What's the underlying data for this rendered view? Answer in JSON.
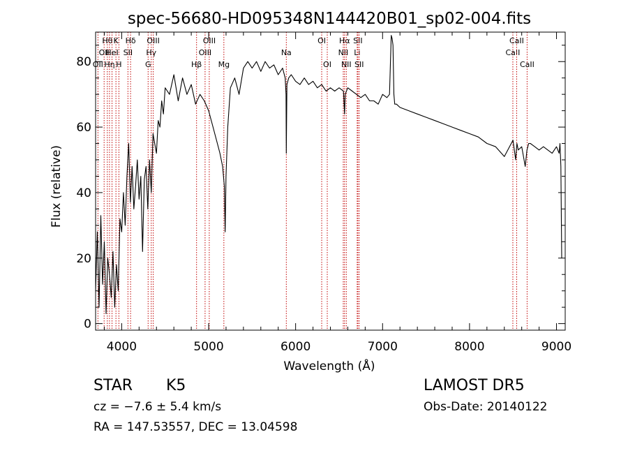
{
  "chart_data": {
    "type": "line",
    "title": "spec-56680-HD095348N144420B01_sp02-004.fits",
    "xlabel": "Wavelength (Å)",
    "ylabel": "Flux (relative)",
    "xlim": [
      3700,
      9100
    ],
    "ylim": [
      -2,
      89
    ],
    "xticks": [
      4000,
      5000,
      6000,
      7000,
      8000,
      9000
    ],
    "yticks": [
      0,
      20,
      40,
      60,
      80
    ],
    "grid": false,
    "series": [
      {
        "x": [
          3700,
          3720,
          3740,
          3760,
          3780,
          3800,
          3820,
          3840,
          3860,
          3880,
          3900,
          3920,
          3940,
          3960,
          3980,
          4000,
          4020,
          4040,
          4060,
          4080,
          4100,
          4120,
          4140,
          4160,
          4180,
          4200,
          4220,
          4240,
          4260,
          4280,
          4300,
          4320,
          4340,
          4360,
          4380,
          4400,
          4420,
          4440,
          4460,
          4480,
          4500,
          4550,
          4600,
          4650,
          4700,
          4750,
          4800,
          4850,
          4900,
          4950,
          5000,
          5050,
          5100,
          5130,
          5160,
          5180,
          5190,
          5200,
          5220,
          5250,
          5300,
          5350,
          5400,
          5450,
          5500,
          5550,
          5600,
          5650,
          5700,
          5750,
          5800,
          5850,
          5880,
          5890,
          5893,
          5900,
          5920,
          5950,
          6000,
          6050,
          6100,
          6150,
          6200,
          6250,
          6300,
          6350,
          6400,
          6450,
          6500,
          6550,
          6563,
          6570,
          6600,
          6650,
          6700,
          6750,
          6800,
          6850,
          6900,
          6950,
          7000,
          7050,
          7080,
          7100,
          7110,
          7120,
          7130,
          7140,
          7160,
          7200,
          7300,
          7400,
          7500,
          7600,
          7700,
          7800,
          7900,
          8000,
          8100,
          8200,
          8300,
          8400,
          8500,
          8530,
          8545,
          8560,
          8600,
          8640,
          8660,
          8680,
          8700,
          8750,
          8800,
          8850,
          8900,
          8950,
          9000,
          9030,
          9040,
          9050,
          9060
        ],
        "y": [
          10,
          28,
          5,
          33,
          12,
          25,
          3,
          20,
          15,
          8,
          22,
          5,
          18,
          10,
          32,
          28,
          40,
          30,
          45,
          55,
          37,
          48,
          35,
          42,
          50,
          38,
          45,
          22,
          44,
          48,
          35,
          50,
          40,
          58,
          55,
          52,
          62,
          60,
          68,
          64,
          72,
          70,
          76,
          68,
          75,
          70,
          73,
          67,
          70,
          68,
          65,
          60,
          55,
          52,
          48,
          42,
          28,
          45,
          60,
          72,
          75,
          70,
          78,
          80,
          78,
          80,
          77,
          80,
          78,
          79,
          76,
          78,
          75,
          70,
          52,
          73,
          75,
          76,
          74,
          73,
          75,
          73,
          74,
          72,
          73,
          71,
          72,
          71,
          72,
          71,
          64,
          70,
          72,
          71,
          70,
          69,
          70,
          68,
          68,
          67,
          70,
          69,
          70,
          88,
          87,
          85,
          70,
          67,
          67,
          66,
          65,
          64,
          63,
          62,
          61,
          60,
          59,
          58,
          57,
          55,
          54,
          51,
          56,
          50,
          55,
          53,
          54,
          48,
          53,
          55,
          55,
          54,
          53,
          54,
          53,
          52,
          54,
          52,
          55,
          48,
          20
        ]
      }
    ],
    "line_markers": [
      {
        "wl": 3727,
        "row": 2,
        "text": "OII"
      },
      {
        "wl": 3798,
        "row": 1,
        "text": "OII"
      },
      {
        "wl": 3835,
        "row": 0,
        "text": "Hθ"
      },
      {
        "wl": 3860,
        "row": 2,
        "text": "Hη"
      },
      {
        "wl": 3889,
        "row": 1,
        "text": "HeI"
      },
      {
        "wl": 3934,
        "row": 0,
        "text": "K"
      },
      {
        "wl": 3968,
        "row": 2,
        "text": "H"
      },
      {
        "wl": 4072,
        "row": 1,
        "text": "SII"
      },
      {
        "wl": 4102,
        "row": 0,
        "text": "Hδ"
      },
      {
        "wl": 4304,
        "row": 2,
        "text": "G"
      },
      {
        "wl": 4340,
        "row": 1,
        "text": "Hγ"
      },
      {
        "wl": 4363,
        "row": 0,
        "text": "OIII"
      },
      {
        "wl": 4861,
        "row": 2,
        "text": "Hβ"
      },
      {
        "wl": 4959,
        "row": 1,
        "text": "OIII"
      },
      {
        "wl": 5007,
        "row": 0,
        "text": "OIII"
      },
      {
        "wl": 5175,
        "row": 2,
        "text": "Mg"
      },
      {
        "wl": 5893,
        "row": 1,
        "text": "Na"
      },
      {
        "wl": 6300,
        "row": 0,
        "text": "OI"
      },
      {
        "wl": 6364,
        "row": 2,
        "text": "OI"
      },
      {
        "wl": 6548,
        "row": 1,
        "text": "NII"
      },
      {
        "wl": 6563,
        "row": 0,
        "text": "Hα"
      },
      {
        "wl": 6583,
        "row": 2,
        "text": "NII"
      },
      {
        "wl": 6708,
        "row": 1,
        "text": "Li"
      },
      {
        "wl": 6716,
        "row": 0,
        "text": "SII"
      },
      {
        "wl": 6731,
        "row": 2,
        "text": "SII"
      },
      {
        "wl": 8498,
        "row": 1,
        "text": "CaII"
      },
      {
        "wl": 8542,
        "row": 0,
        "text": "CaII"
      },
      {
        "wl": 8662,
        "row": 2,
        "text": "CaII"
      }
    ]
  },
  "info": {
    "class_label": "STAR",
    "subclass_label": "K5",
    "cz_text": "cz = −7.6 ± 5.4 km/s",
    "coords_text": "RA = 147.53557, DEC =  13.04598",
    "survey_label": "LAMOST DR5",
    "obs_date_text": "Obs-Date: 20140122"
  }
}
